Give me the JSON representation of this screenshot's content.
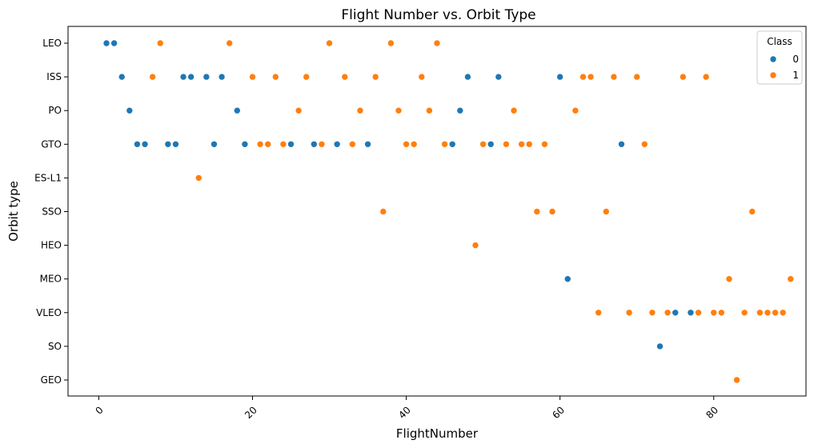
{
  "chart_data": {
    "type": "scatter",
    "title": "Flight Number vs. Orbit Type",
    "xlabel": "FlightNumber",
    "ylabel": "Orbit type",
    "xlim": [
      -4,
      92
    ],
    "xticks": [
      0,
      20,
      40,
      60,
      80
    ],
    "xtick_labels": [
      "0",
      "20",
      "40",
      "60",
      "80"
    ],
    "xtick_rotation": -45,
    "categories": [
      "LEO",
      "ISS",
      "PO",
      "GTO",
      "ES-L1",
      "SSO",
      "HEO",
      "MEO",
      "VLEO",
      "SO",
      "GEO"
    ],
    "grid": false,
    "legend": {
      "title": "Class",
      "placement": "top-right",
      "entries": [
        "0",
        "1"
      ]
    },
    "series": [
      {
        "name": "0",
        "color": "#1f77b4",
        "points": [
          {
            "x": 1,
            "y": "LEO"
          },
          {
            "x": 2,
            "y": "LEO"
          },
          {
            "x": 3,
            "y": "ISS"
          },
          {
            "x": 11,
            "y": "ISS"
          },
          {
            "x": 12,
            "y": "ISS"
          },
          {
            "x": 14,
            "y": "ISS"
          },
          {
            "x": 16,
            "y": "ISS"
          },
          {
            "x": 48,
            "y": "ISS"
          },
          {
            "x": 52,
            "y": "ISS"
          },
          {
            "x": 60,
            "y": "ISS"
          },
          {
            "x": 4,
            "y": "PO"
          },
          {
            "x": 18,
            "y": "PO"
          },
          {
            "x": 47,
            "y": "PO"
          },
          {
            "x": 5,
            "y": "GTO"
          },
          {
            "x": 6,
            "y": "GTO"
          },
          {
            "x": 9,
            "y": "GTO"
          },
          {
            "x": 10,
            "y": "GTO"
          },
          {
            "x": 15,
            "y": "GTO"
          },
          {
            "x": 19,
            "y": "GTO"
          },
          {
            "x": 25,
            "y": "GTO"
          },
          {
            "x": 28,
            "y": "GTO"
          },
          {
            "x": 31,
            "y": "GTO"
          },
          {
            "x": 35,
            "y": "GTO"
          },
          {
            "x": 46,
            "y": "GTO"
          },
          {
            "x": 51,
            "y": "GTO"
          },
          {
            "x": 68,
            "y": "GTO"
          },
          {
            "x": 61,
            "y": "MEO"
          },
          {
            "x": 75,
            "y": "VLEO"
          },
          {
            "x": 77,
            "y": "VLEO"
          },
          {
            "x": 73,
            "y": "SO"
          }
        ]
      },
      {
        "name": "1",
        "color": "#ff7f0e",
        "points": [
          {
            "x": 8,
            "y": "LEO"
          },
          {
            "x": 17,
            "y": "LEO"
          },
          {
            "x": 30,
            "y": "LEO"
          },
          {
            "x": 38,
            "y": "LEO"
          },
          {
            "x": 44,
            "y": "LEO"
          },
          {
            "x": 7,
            "y": "ISS"
          },
          {
            "x": 20,
            "y": "ISS"
          },
          {
            "x": 23,
            "y": "ISS"
          },
          {
            "x": 27,
            "y": "ISS"
          },
          {
            "x": 32,
            "y": "ISS"
          },
          {
            "x": 36,
            "y": "ISS"
          },
          {
            "x": 42,
            "y": "ISS"
          },
          {
            "x": 63,
            "y": "ISS"
          },
          {
            "x": 64,
            "y": "ISS"
          },
          {
            "x": 67,
            "y": "ISS"
          },
          {
            "x": 70,
            "y": "ISS"
          },
          {
            "x": 76,
            "y": "ISS"
          },
          {
            "x": 79,
            "y": "ISS"
          },
          {
            "x": 26,
            "y": "PO"
          },
          {
            "x": 34,
            "y": "PO"
          },
          {
            "x": 39,
            "y": "PO"
          },
          {
            "x": 43,
            "y": "PO"
          },
          {
            "x": 54,
            "y": "PO"
          },
          {
            "x": 62,
            "y": "PO"
          },
          {
            "x": 21,
            "y": "GTO"
          },
          {
            "x": 22,
            "y": "GTO"
          },
          {
            "x": 24,
            "y": "GTO"
          },
          {
            "x": 29,
            "y": "GTO"
          },
          {
            "x": 33,
            "y": "GTO"
          },
          {
            "x": 40,
            "y": "GTO"
          },
          {
            "x": 41,
            "y": "GTO"
          },
          {
            "x": 45,
            "y": "GTO"
          },
          {
            "x": 50,
            "y": "GTO"
          },
          {
            "x": 53,
            "y": "GTO"
          },
          {
            "x": 55,
            "y": "GTO"
          },
          {
            "x": 56,
            "y": "GTO"
          },
          {
            "x": 58,
            "y": "GTO"
          },
          {
            "x": 71,
            "y": "GTO"
          },
          {
            "x": 13,
            "y": "ES-L1"
          },
          {
            "x": 37,
            "y": "SSO"
          },
          {
            "x": 57,
            "y": "SSO"
          },
          {
            "x": 59,
            "y": "SSO"
          },
          {
            "x": 66,
            "y": "SSO"
          },
          {
            "x": 85,
            "y": "SSO"
          },
          {
            "x": 49,
            "y": "HEO"
          },
          {
            "x": 82,
            "y": "MEO"
          },
          {
            "x": 90,
            "y": "MEO"
          },
          {
            "x": 65,
            "y": "VLEO"
          },
          {
            "x": 69,
            "y": "VLEO"
          },
          {
            "x": 72,
            "y": "VLEO"
          },
          {
            "x": 74,
            "y": "VLEO"
          },
          {
            "x": 78,
            "y": "VLEO"
          },
          {
            "x": 80,
            "y": "VLEO"
          },
          {
            "x": 81,
            "y": "VLEO"
          },
          {
            "x": 84,
            "y": "VLEO"
          },
          {
            "x": 86,
            "y": "VLEO"
          },
          {
            "x": 87,
            "y": "VLEO"
          },
          {
            "x": 88,
            "y": "VLEO"
          },
          {
            "x": 89,
            "y": "VLEO"
          },
          {
            "x": 83,
            "y": "GEO"
          }
        ]
      }
    ]
  }
}
